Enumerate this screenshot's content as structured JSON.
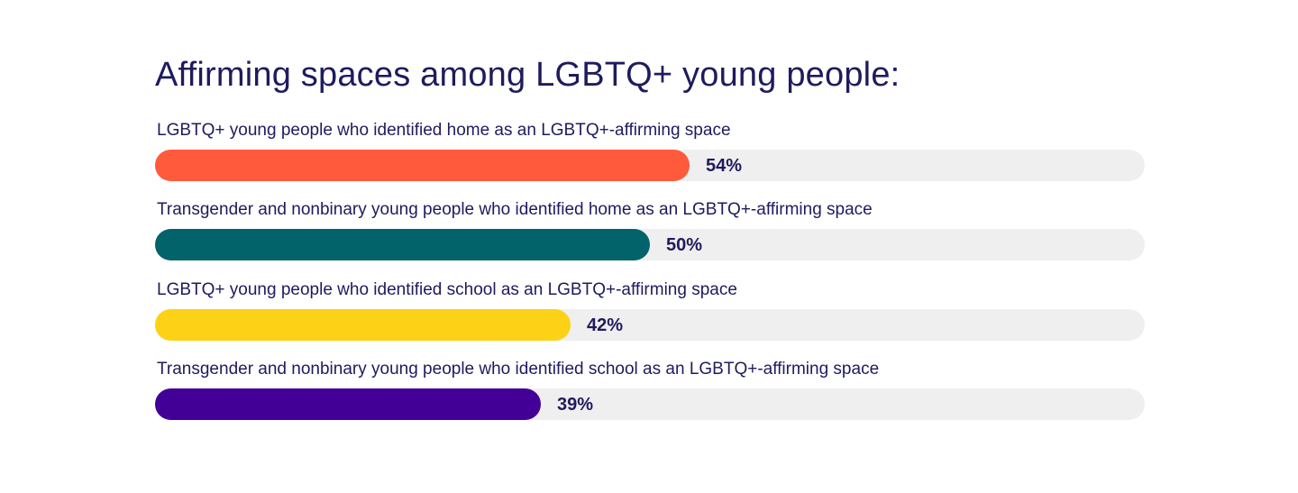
{
  "chart_data": {
    "type": "bar",
    "orientation": "horizontal",
    "title": "Affirming spaces among LGBTQ+ young people:",
    "xlim": [
      0,
      100
    ],
    "grid": false,
    "categories": [
      "LGBTQ+ young people who identified home as an LGBTQ+-affirming space",
      "Transgender and nonbinary young people who identified home as an LGBTQ+-affirming space",
      "LGBTQ+ young people who identified school as an LGBTQ+-affirming space",
      "Transgender and nonbinary young people who identified school as an LGBTQ+-affirming space"
    ],
    "values": [
      54,
      50,
      42,
      39
    ],
    "value_labels": [
      "54%",
      "50%",
      "42%",
      "39%"
    ],
    "colors": [
      "#ff5a3c",
      "#03636b",
      "#fdd115",
      "#430097"
    ],
    "track_color": "#efefef"
  }
}
